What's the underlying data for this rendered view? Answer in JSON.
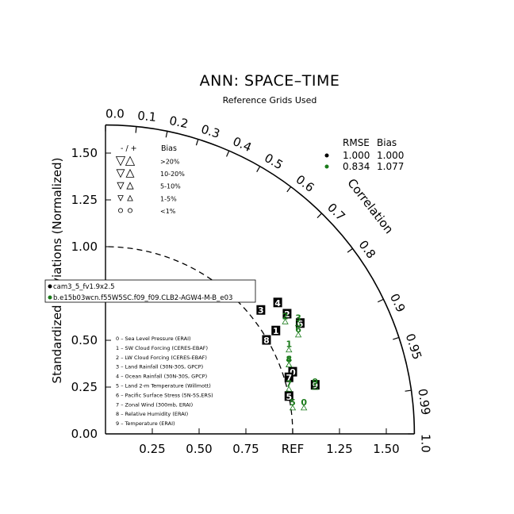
{
  "chart_data": {
    "type": "taylor",
    "title": "ANN: SPACE–TIME",
    "subtitle": "Reference Grids Used",
    "ylabel": "Standardized Deviations (Normalized)",
    "arc_label": "Correlation",
    "ref_label": "REF",
    "std_ticks": [
      "0.00",
      "0.25",
      "0.50",
      "0.75",
      "1.00",
      "1.25",
      "1.50"
    ],
    "x_ticks": [
      "0.25",
      "0.50",
      "0.75",
      "REF",
      "1.25",
      "1.50"
    ],
    "x_tick_values": [
      0.25,
      0.5,
      0.75,
      1.0,
      1.25,
      1.5
    ],
    "y_tick_values": [
      0,
      0.25,
      0.5,
      0.75,
      1.0,
      1.25,
      1.5
    ],
    "corr_ticks": [
      {
        "value": 0.0,
        "label": "0.0"
      },
      {
        "value": 0.1,
        "label": "0.1"
      },
      {
        "value": 0.2,
        "label": "0.2"
      },
      {
        "value": 0.3,
        "label": "0.3"
      },
      {
        "value": 0.4,
        "label": "0.4"
      },
      {
        "value": 0.5,
        "label": "0.5"
      },
      {
        "value": 0.6,
        "label": "0.6"
      },
      {
        "value": 0.7,
        "label": "0.7"
      },
      {
        "value": 0.8,
        "label": "0.8"
      },
      {
        "value": 0.9,
        "label": "0.9"
      },
      {
        "value": 0.95,
        "label": "0.95"
      },
      {
        "value": 0.99,
        "label": "0.99"
      },
      {
        "value": 1.0,
        "label": "1.0"
      }
    ],
    "max_std": 1.65,
    "ref_std": 1.0,
    "bias_legend": {
      "header": [
        "-  /  +",
        "Bias"
      ],
      "rows": [
        ">20%",
        "10-20%",
        "5-10%",
        "1-5%",
        "<1%"
      ]
    },
    "rmse_table": {
      "header": [
        "RMSE",
        "Bias"
      ],
      "rows": [
        {
          "color": "#000000",
          "rmse": "1.000",
          "bias": "1.000"
        },
        {
          "color": "#1a7a1a",
          "rmse": "0.834",
          "bias": "1.077"
        }
      ]
    },
    "case_box": [
      "cam3_5_fv1.9x2.5",
      "b.e15b03wcn.f55W5SC.f09_f09.CLB2-AGW4-M-B_e03"
    ],
    "variables": [
      "0 – Sea Level Pressure (ERAI)",
      "1 – SW Cloud Forcing (CERES-EBAF)",
      "2 – LW Cloud Forcing (CERES-EBAF)",
      "3 – Land Rainfall (30N-30S, GPCP)",
      "4 – Ocean Rainfall (30N-30S, GPCP)",
      "5 – Land 2-m Temperature (Willmott)",
      "6 – Pacific Surface Stress (5N-5S,ERS)",
      "7 – Zonal Wind (300mb, ERAI)",
      "8 – Relative Humidity (ERAI)",
      "9 – Temperature (ERAI)"
    ],
    "series": [
      {
        "name": "cam3_5_fv1.9x2.5",
        "color": "#000000",
        "points": [
          {
            "id": "0",
            "x": 1.0,
            "y": 0.33
          },
          {
            "id": "1",
            "x": 0.91,
            "y": 0.55
          },
          {
            "id": "2",
            "x": 0.97,
            "y": 0.64
          },
          {
            "id": "3",
            "x": 0.83,
            "y": 0.66
          },
          {
            "id": "4",
            "x": 0.92,
            "y": 0.7
          },
          {
            "id": "5",
            "x": 0.98,
            "y": 0.2
          },
          {
            "id": "6",
            "x": 1.04,
            "y": 0.59
          },
          {
            "id": "7",
            "x": 0.98,
            "y": 0.3
          },
          {
            "id": "8",
            "x": 0.86,
            "y": 0.5
          },
          {
            "id": "9",
            "x": 1.12,
            "y": 0.26
          }
        ]
      },
      {
        "name": "b.e15b03wcn.f55W5SC.f09_f09.CLB2-AGW4-M-B_e03",
        "color": "#1a7a1a",
        "points": [
          {
            "id": "0",
            "x": 1.06,
            "y": 0.17
          },
          {
            "id": "1",
            "x": 0.98,
            "y": 0.48
          },
          {
            "id": "2",
            "x": 0.96,
            "y": 0.63
          },
          {
            "id": "3",
            "x": 1.03,
            "y": 0.62
          },
          {
            "id": "4",
            "x": 0.98,
            "y": 0.4
          },
          {
            "id": "5",
            "x": 1.0,
            "y": 0.17
          },
          {
            "id": "6",
            "x": 1.03,
            "y": 0.56
          },
          {
            "id": "7",
            "x": 0.98,
            "y": 0.27
          },
          {
            "id": "8",
            "x": 0.98,
            "y": 0.4
          },
          {
            "id": "9",
            "x": 1.12,
            "y": 0.28
          }
        ]
      }
    ]
  }
}
